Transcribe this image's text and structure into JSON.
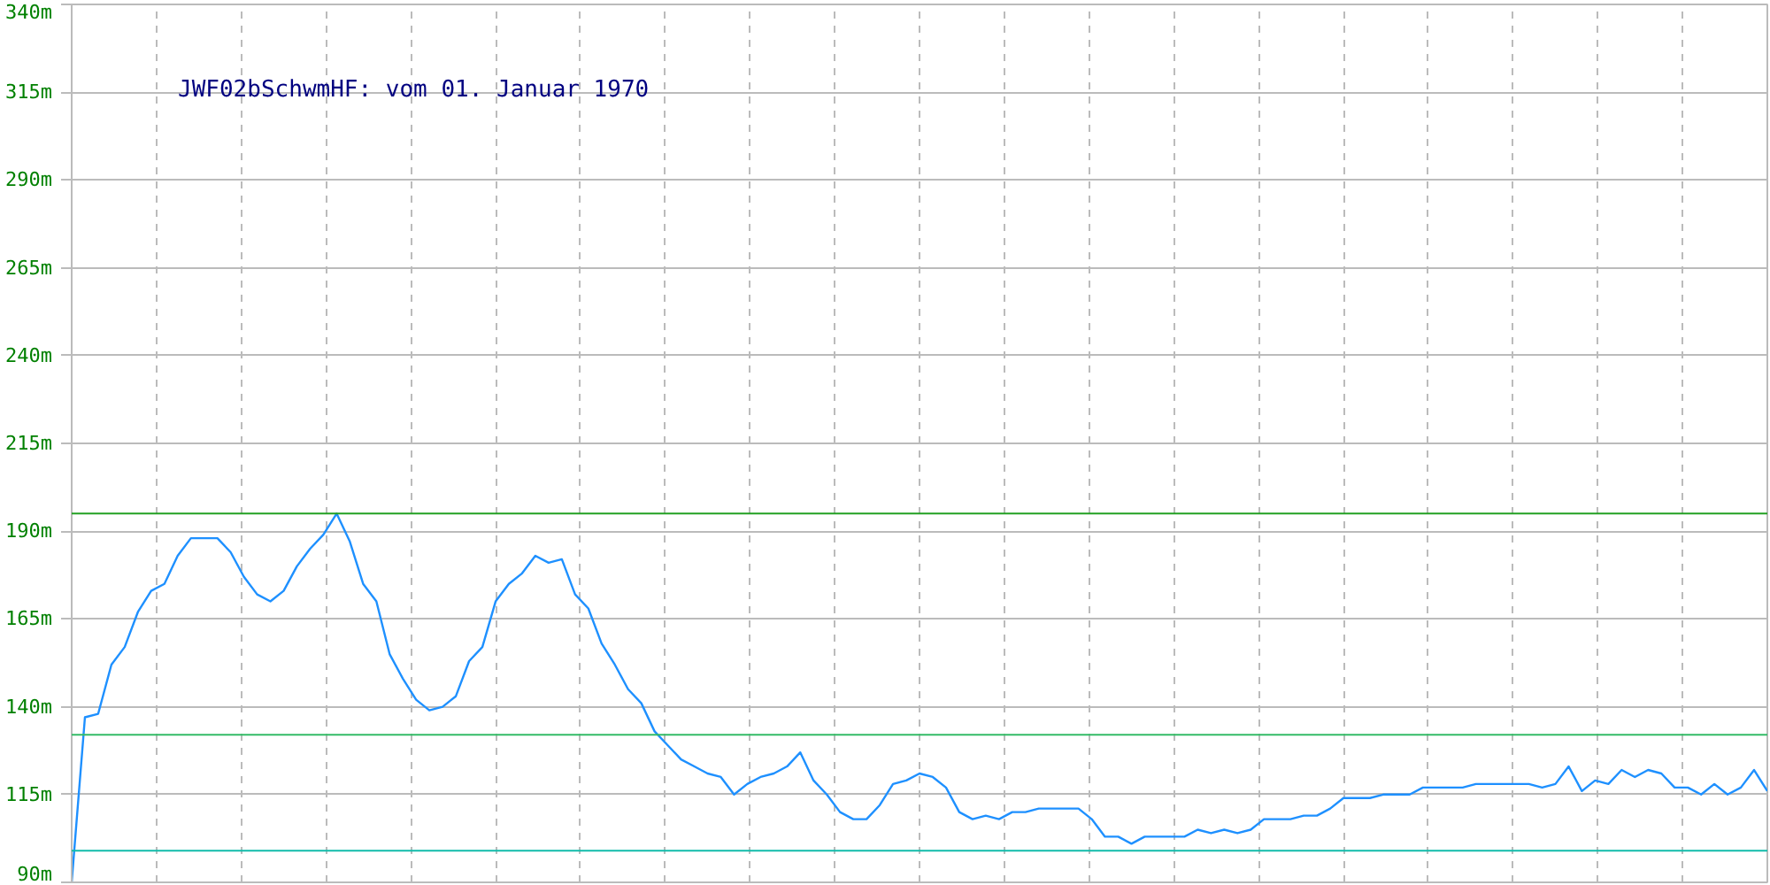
{
  "chart_data": {
    "type": "line",
    "title": "JWF02bSchwmHF: vom 01. Januar 1970",
    "categories": [
      null,
      null,
      null,
      null,
      null,
      null,
      null,
      null,
      null,
      null,
      null,
      null,
      null,
      null,
      null,
      null,
      null,
      null,
      null,
      null,
      null,
      null,
      null,
      null,
      null,
      null,
      null,
      null,
      null,
      null,
      null,
      null,
      null,
      null,
      null,
      null,
      null,
      null,
      null,
      null,
      null,
      null,
      null,
      null,
      null,
      null,
      null,
      null,
      null,
      null,
      null,
      null,
      null,
      null,
      null,
      null,
      null,
      null,
      null,
      null,
      null,
      null,
      null,
      null,
      null,
      null,
      null,
      null,
      null,
      null,
      null,
      null,
      null,
      null,
      null,
      null,
      null,
      null,
      null,
      null,
      null,
      null,
      null,
      null,
      null,
      null,
      null,
      null,
      null,
      null,
      null,
      null,
      null,
      null,
      null,
      null,
      null,
      null,
      null,
      null,
      null,
      null,
      null,
      null,
      null,
      null,
      null,
      null,
      null,
      null,
      null,
      null,
      null,
      null,
      null,
      null,
      null,
      null,
      null,
      null,
      null,
      null,
      null,
      null,
      null,
      null,
      null,
      null,
      null
    ],
    "series": [
      {
        "color": "#1e90ff",
        "values": [
          90,
          137,
          138,
          152,
          157,
          167,
          173,
          175,
          183,
          188,
          188,
          188,
          184,
          177,
          172,
          170,
          173,
          180,
          185,
          189,
          195,
          187,
          175,
          170,
          155,
          148,
          142,
          139,
          140,
          143,
          153,
          157,
          170,
          175,
          178,
          183,
          181,
          182,
          172,
          168,
          158,
          152,
          145,
          141,
          133,
          129,
          125,
          123,
          121,
          120,
          115,
          118,
          120,
          121,
          123,
          127,
          119,
          115,
          110,
          108,
          108,
          112,
          118,
          119,
          121,
          120,
          117,
          110,
          108,
          109,
          108,
          110,
          110,
          111,
          111,
          111,
          111,
          108,
          103,
          103,
          101,
          103,
          103,
          103,
          103,
          105,
          104,
          105,
          104,
          105,
          108,
          108,
          108,
          109,
          109,
          111,
          114,
          114,
          114,
          115,
          115,
          115,
          117,
          117,
          117,
          117,
          118,
          118,
          118,
          118,
          118,
          117,
          118,
          123,
          116,
          119,
          118,
          122,
          120,
          122,
          121,
          117,
          117,
          115,
          118,
          115,
          117,
          122,
          116
        ]
      }
    ],
    "ylim": [
      90,
      340
    ],
    "yticks": [
      {
        "value": 90,
        "label": "90m"
      },
      {
        "value": 115,
        "label": "115m"
      },
      {
        "value": 140,
        "label": "140m"
      },
      {
        "value": 165,
        "label": "165m"
      },
      {
        "value": 190,
        "label": "190m"
      },
      {
        "value": 215,
        "label": "215m"
      },
      {
        "value": 240,
        "label": "240m"
      },
      {
        "value": 265,
        "label": "265m"
      },
      {
        "value": 290,
        "label": "290m"
      },
      {
        "value": 315,
        "label": "315m"
      },
      {
        "value": 340,
        "label": "340m"
      }
    ],
    "ref_lines": [
      {
        "axis": "y",
        "value": 195,
        "color": "#22a022"
      },
      {
        "axis": "y",
        "value": 132,
        "color": "#33bb66"
      },
      {
        "axis": "y",
        "value": 99,
        "color": "#11bbaa"
      }
    ],
    "grid": true,
    "tick_labels": "y",
    "marker": "none",
    "line_style": "solid"
  }
}
